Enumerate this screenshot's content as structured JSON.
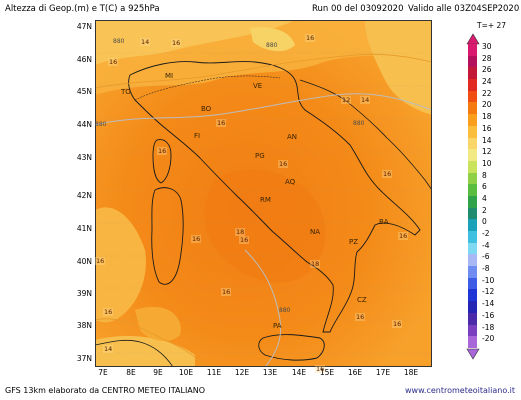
{
  "header": {
    "title": "Altezza di Geop.(m) e T(C) a 925hPa",
    "run": "Run 00 del 03092020",
    "valid": "Valido alle 03Z04SEP2020",
    "forecast_step": "T=+ 27"
  },
  "axes": {
    "lat_labels": [
      "47N",
      "46N",
      "45N",
      "44N",
      "43N",
      "42N",
      "41N",
      "40N",
      "39N",
      "38N",
      "37N"
    ],
    "lon_labels": [
      "7E",
      "8E",
      "9E",
      "10E",
      "11E",
      "12E",
      "13E",
      "14E",
      "15E",
      "16E",
      "17E",
      "18E"
    ]
  },
  "cities": [
    "TO",
    "MI",
    "VE",
    "BO",
    "FI",
    "AN",
    "PG",
    "AQ",
    "RM",
    "BA",
    "NA",
    "PZ",
    "CZ",
    "PA"
  ],
  "isotherm_labels": [
    "14",
    "16",
    "16",
    "12",
    "14",
    "16",
    "16",
    "16",
    "16",
    "16",
    "16",
    "16",
    "16",
    "16",
    "16",
    "16",
    "16",
    "14",
    "18",
    "18",
    "16",
    "16"
  ],
  "geopotential_labels": [
    "880",
    "880",
    "880",
    "880",
    "880"
  ],
  "colorbar": {
    "values": [
      "30",
      "28",
      "26",
      "24",
      "22",
      "20",
      "18",
      "16",
      "14",
      "12",
      "10",
      "8",
      "6",
      "4",
      "2",
      "0",
      "-2",
      "-4",
      "-6",
      "-8",
      "-10",
      "-12",
      "-14",
      "-16",
      "-18",
      "-20"
    ],
    "colors": [
      "#d91a6e",
      "#b5105c",
      "#c41838",
      "#e02a22",
      "#f04e12",
      "#f57a10",
      "#fa9e1e",
      "#fbbd3c",
      "#fad567",
      "#f2e983",
      "#c9e35c",
      "#8fd046",
      "#5bbd3f",
      "#2fa34a",
      "#1e8c6e",
      "#1aa3b8",
      "#3fc0e0",
      "#7fd8f2",
      "#a8b8f5",
      "#6f8cf0",
      "#3d5ce6",
      "#1f36d6",
      "#2424b5",
      "#4a2aa8",
      "#7a3fbf",
      "#a866d9"
    ]
  },
  "footer": {
    "left": "GFS 13km elaborato da CENTRO METEO ITALIANO",
    "right": "www.centrometeoitaliano.it"
  }
}
